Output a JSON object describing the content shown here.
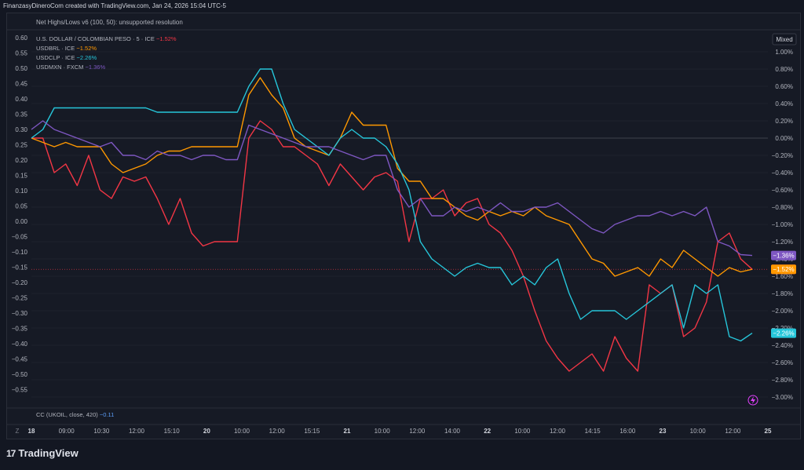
{
  "header": {
    "text": "FinanzasyDineroCom created with TradingView.com, Jan 24, 2026 15:04 UTC-5"
  },
  "indicator_label": "Net Highs/Lows v6 (100, 50): unsupported resolution",
  "legend": [
    {
      "name": "U.S. DOLLAR / COLOMBIAN PESO · 5 · ICE",
      "value": "−1.52%",
      "color": "#f23645"
    },
    {
      "name": "USDBRL · ICE",
      "value": "−1.52%",
      "color": "#ff9800"
    },
    {
      "name": "USDCLP · ICE",
      "value": "−2.26%",
      "color": "#26c6da"
    },
    {
      "name": "USDMXN · FXCM",
      "value": "−1.36%",
      "color": "#7e57c2"
    }
  ],
  "scale_mode": "Mixed",
  "footer_label": {
    "name": "CC (UKOIL, close, 420)",
    "value": "−0.11"
  },
  "brand": "TradingView",
  "z_label": "Z",
  "chart_data": {
    "type": "line",
    "left_axis": {
      "ticks": [
        "0.60",
        "0.55",
        "0.50",
        "0.45",
        "0.40",
        "0.35",
        "0.30",
        "0.25",
        "0.20",
        "0.15",
        "0.10",
        "0.05",
        "0.00",
        "−0.05",
        "−0.10",
        "−0.15",
        "−0.20",
        "−0.25",
        "−0.30",
        "−0.35",
        "−0.40",
        "−0.45",
        "−0.50",
        "−0.55"
      ],
      "range": [
        -0.55,
        0.6
      ]
    },
    "right_axis": {
      "ticks": [
        "1.00%",
        "0.80%",
        "0.60%",
        "0.40%",
        "0.20%",
        "0.00%",
        "−0.20%",
        "−0.40%",
        "−0.60%",
        "−0.80%",
        "−1.00%",
        "−1.20%",
        "−1.40%",
        "−1.60%",
        "−1.80%",
        "−2.00%",
        "−2.20%",
        "−2.40%",
        "−2.60%",
        "−2.80%",
        "−3.00%"
      ],
      "range": [
        -3.0,
        1.0
      ],
      "unit": "%"
    },
    "x_ticks": [
      {
        "label": "18",
        "bold": true
      },
      {
        "label": "09:00"
      },
      {
        "label": "10:30"
      },
      {
        "label": "12:00"
      },
      {
        "label": "15:10"
      },
      {
        "label": "20",
        "bold": true
      },
      {
        "label": "10:00"
      },
      {
        "label": "12:00"
      },
      {
        "label": "15:15"
      },
      {
        "label": "21",
        "bold": true
      },
      {
        "label": "10:00"
      },
      {
        "label": "12:00"
      },
      {
        "label": "14:00"
      },
      {
        "label": "22",
        "bold": true
      },
      {
        "label": "10:00"
      },
      {
        "label": "12:00"
      },
      {
        "label": "14:15"
      },
      {
        "label": "16:00"
      },
      {
        "label": "23",
        "bold": true
      },
      {
        "label": "10:00"
      },
      {
        "label": "12:00"
      },
      {
        "label": "25",
        "bold": true
      }
    ],
    "series": [
      {
        "name": "U.S. DOLLAR / COLOMBIAN PESO · 5 · ICE",
        "color": "#f23645",
        "last": "−1.52%",
        "values": [
          0.0,
          0.0,
          -0.4,
          -0.3,
          -0.55,
          -0.2,
          -0.6,
          -0.7,
          -0.45,
          -0.5,
          -0.45,
          -0.7,
          -1.0,
          -0.7,
          -1.1,
          -1.25,
          -1.2,
          -1.2,
          -1.2,
          0.0,
          0.2,
          0.1,
          -0.1,
          -0.1,
          -0.2,
          -0.3,
          -0.55,
          -0.3,
          -0.45,
          -0.6,
          -0.45,
          -0.4,
          -0.5,
          -1.2,
          -0.7,
          -0.7,
          -0.6,
          -0.9,
          -0.75,
          -0.7,
          -1.0,
          -1.1,
          -1.3,
          -1.6,
          -2.0,
          -2.35,
          -2.55,
          -2.7,
          -2.6,
          -2.5,
          -2.7,
          -2.3,
          -2.55,
          -2.7,
          -1.7,
          -1.8,
          -1.7,
          -2.3,
          -2.2,
          -1.9,
          -1.2,
          -1.1,
          -1.4,
          -1.52
        ]
      },
      {
        "name": "USDBRL · ICE",
        "color": "#ff9800",
        "last": "−1.52%",
        "values": [
          0.0,
          -0.05,
          -0.1,
          -0.05,
          -0.1,
          -0.1,
          -0.1,
          -0.3,
          -0.4,
          -0.35,
          -0.3,
          -0.2,
          -0.15,
          -0.15,
          -0.1,
          -0.1,
          -0.1,
          -0.1,
          -0.1,
          0.5,
          0.7,
          0.5,
          0.35,
          0.0,
          -0.1,
          -0.15,
          -0.2,
          0.0,
          0.3,
          0.15,
          0.15,
          0.15,
          -0.35,
          -0.5,
          -0.5,
          -0.7,
          -0.7,
          -0.8,
          -0.9,
          -0.95,
          -0.85,
          -0.9,
          -0.85,
          -0.9,
          -0.8,
          -0.9,
          -0.95,
          -1.0,
          -1.2,
          -1.4,
          -1.45,
          -1.6,
          -1.55,
          -1.5,
          -1.6,
          -1.4,
          -1.5,
          -1.3,
          -1.4,
          -1.5,
          -1.6,
          -1.5,
          -1.55,
          -1.52
        ]
      },
      {
        "name": "USDCLP · ICE",
        "color": "#26c6da",
        "last": "−2.26%",
        "values": [
          0.0,
          0.1,
          0.35,
          0.35,
          0.35,
          0.35,
          0.35,
          0.35,
          0.35,
          0.35,
          0.35,
          0.3,
          0.3,
          0.3,
          0.3,
          0.3,
          0.3,
          0.3,
          0.3,
          0.6,
          0.8,
          0.8,
          0.4,
          0.1,
          0.0,
          -0.1,
          -0.2,
          0.0,
          0.1,
          0.0,
          0.0,
          -0.1,
          -0.3,
          -0.6,
          -1.2,
          -1.4,
          -1.5,
          -1.6,
          -1.5,
          -1.45,
          -1.5,
          -1.5,
          -1.7,
          -1.6,
          -1.7,
          -1.5,
          -1.4,
          -1.8,
          -2.1,
          -2.0,
          -2.0,
          -2.0,
          -2.1,
          -2.0,
          -1.9,
          -1.8,
          -1.7,
          -2.2,
          -1.7,
          -1.8,
          -1.7,
          -2.3,
          -2.35,
          -2.26
        ]
      },
      {
        "name": "USDMXN · FXCM",
        "color": "#7e57c2",
        "last": "−1.36%",
        "values": [
          0.1,
          0.2,
          0.1,
          0.05,
          0.0,
          -0.05,
          -0.1,
          -0.05,
          -0.2,
          -0.2,
          -0.25,
          -0.15,
          -0.2,
          -0.2,
          -0.25,
          -0.2,
          -0.2,
          -0.25,
          -0.25,
          0.15,
          0.1,
          0.05,
          0.0,
          -0.05,
          -0.1,
          -0.1,
          -0.1,
          -0.15,
          -0.2,
          -0.25,
          -0.2,
          -0.2,
          -0.6,
          -0.8,
          -0.7,
          -0.9,
          -0.9,
          -0.8,
          -0.85,
          -0.8,
          -0.85,
          -0.75,
          -0.85,
          -0.85,
          -0.8,
          -0.8,
          -0.75,
          -0.85,
          -0.95,
          -1.05,
          -1.1,
          -1.0,
          -0.95,
          -0.9,
          -0.9,
          -0.85,
          -0.9,
          -0.85,
          -0.9,
          -0.8,
          -1.2,
          -1.25,
          -1.35,
          -1.36
        ]
      }
    ]
  }
}
